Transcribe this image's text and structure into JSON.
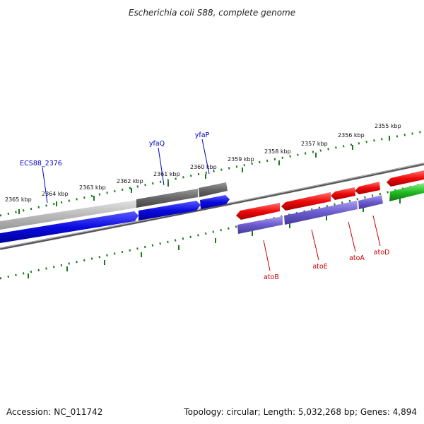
{
  "title": "Escherichia coli S88, complete genome",
  "footer": {
    "accession": "Accession: NC_011742",
    "summary": "Topology: circular; Length: 5,032,268 bp; Genes: 4,894"
  },
  "ruler": {
    "labels": [
      "2365 kbp",
      "2364 kbp",
      "2363 kbp",
      "2362 kbp",
      "2361 kbp",
      "2360 kbp",
      "2359 kbp",
      "2358 kbp",
      "2357 kbp",
      "2356 kbp",
      "2355 kbp"
    ]
  },
  "gene_labels": [
    {
      "text": "ECS88_2376",
      "color": "#0000cc"
    },
    {
      "text": "yfaQ",
      "color": "#0000cc"
    },
    {
      "text": "yfaP",
      "color": "#0000cc"
    },
    {
      "text": "atoB",
      "color": "#cc0000"
    },
    {
      "text": "atoE",
      "color": "#cc0000"
    },
    {
      "text": "atoA",
      "color": "#cc0000"
    },
    {
      "text": "atoD",
      "color": "#cc0000"
    }
  ],
  "colors": {
    "blue_gene": "#0a0adf",
    "red_gene": "#ee0a0a",
    "purple_gene": "#6a5acd",
    "green_gene": "#22bb22",
    "gray_gene": "#666666",
    "light_gray_gene": "#bbbbbb",
    "ruler_green": "#1a7a1a"
  }
}
